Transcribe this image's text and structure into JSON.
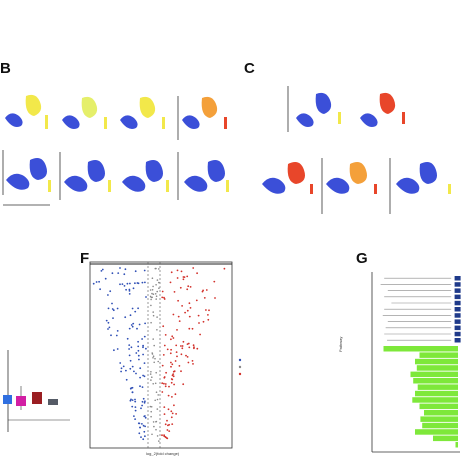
{
  "panels": {
    "B": {
      "label": "B"
    },
    "C": {
      "label": "C"
    },
    "F": {
      "label": "F",
      "x_axis_label": "log_2(fold change)"
    },
    "G": {
      "label": "G",
      "y_axis_label": "Pathway"
    }
  },
  "colors": {
    "umap_blue": "#3b4fd8",
    "umap_yellow": "#f2e84a",
    "umap_red": "#e8462a",
    "volcano_red": "#d2312b",
    "volcano_blue": "#2f4fb5",
    "bar_green": "#7ee83a",
    "bar_navy": "#1f3a8a",
    "box_blue": "#2f6fe0",
    "box_magenta": "#d21fa4",
    "box_darkred": "#9a1e22",
    "box_gray": "#555b66"
  },
  "chart_data": [
    {
      "type": "box",
      "panel": "E-partial",
      "categories": [
        "",
        "",
        "",
        ""
      ],
      "colors": [
        "#2f6fe0",
        "#d21fa4",
        "#9a1e22",
        "#555b66"
      ]
    },
    {
      "type": "scatter",
      "panel": "F",
      "description_series": [
        "up",
        "down"
      ]
    },
    {
      "type": "bar",
      "panel": "G",
      "series": [
        {
          "values": [
            0.9,
            0.95,
            0.85,
            0.9,
            0.8,
            0.9,
            0.92,
            0.85,
            0.88,
            0.9,
            0.86
          ]
        },
        {
          "values": [
            0.85,
            0.45,
            0.5,
            0.48,
            0.55,
            0.52,
            0.47,
            0.5,
            0.53,
            0.45,
            0.4,
            0.44,
            0.42,
            0.5,
            0.3,
            0.05
          ]
        }
      ]
    }
  ]
}
